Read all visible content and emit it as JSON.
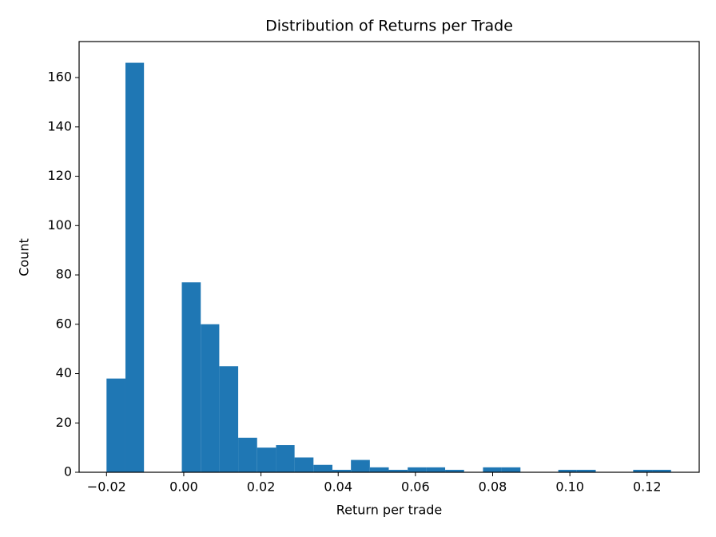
{
  "chart_data": {
    "type": "histogram",
    "title": "Distribution of Returns per Trade",
    "x_label": "Return per trade",
    "y_label": "Count",
    "color": "#1f77b4",
    "bins": [
      -0.02,
      -0.0151,
      -0.0103,
      -0.0054,
      -0.0005,
      0.0044,
      0.0092,
      0.0141,
      0.019,
      0.0239,
      0.0287,
      0.0336,
      0.0385,
      0.0433,
      0.0482,
      0.0531,
      0.058,
      0.0628,
      0.0677,
      0.0726,
      0.0775,
      0.0823,
      0.0872,
      0.0921,
      0.097,
      0.1018,
      0.1067,
      0.1116,
      0.1164,
      0.1213,
      0.1262
    ],
    "values": [
      38,
      166,
      0,
      0,
      77,
      60,
      43,
      14,
      10,
      11,
      6,
      3,
      1,
      5,
      2,
      1,
      2,
      2,
      1,
      0,
      2,
      2,
      0,
      0,
      1,
      1,
      0,
      0,
      1,
      1
    ],
    "xlim": [
      -0.0271,
      0.1335
    ],
    "ylim": [
      0,
      174.6
    ],
    "xticks": [
      {
        "value": -0.02,
        "label": "−0.02"
      },
      {
        "value": 0,
        "label": "0.00"
      },
      0.02,
      0.04,
      0.06,
      0.08,
      {
        "value": 0.1,
        "label": "0.10"
      },
      0.12
    ],
    "yticks": [
      0,
      20,
      40,
      60,
      80,
      100,
      120,
      140,
      160
    ]
  }
}
